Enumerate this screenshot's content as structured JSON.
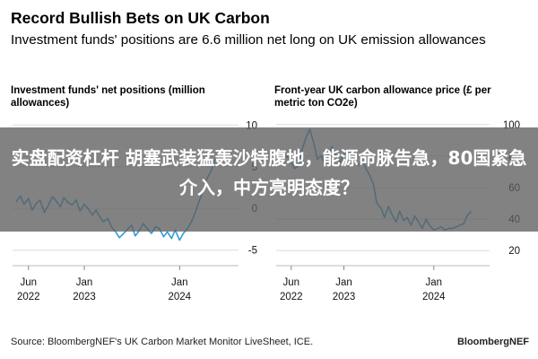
{
  "header": {
    "title": "Record Bullish Bets on UK Carbon",
    "subtitle": "Investment funds' positions are 6.6 million net long on UK emission allowances"
  },
  "overlay": {
    "banner_text": "实盘配资杠杆 胡塞武装猛轰沙特腹地，能源命脉告急，80国紧急介入，中方亮明态度？"
  },
  "footer": {
    "source": "Source: BloombergNEF's UK Carbon Market Monitor LiveSheet, ICE.",
    "brand": "BloombergNEF"
  },
  "chart_data": [
    {
      "type": "line",
      "title": "Investment funds' net positions (million allowances)",
      "xlabel": "",
      "ylabel": "",
      "color": "#2F9BD6",
      "x_ticks": [
        {
          "x": "2022-06-01",
          "line1": "Jun",
          "line2": "2022"
        },
        {
          "x": "2023-01-01",
          "line1": "Jan",
          "line2": "2023"
        },
        {
          "x": "2024-01-01",
          "line1": "Jan",
          "line2": "2024"
        }
      ],
      "y_ticks": [
        10,
        5,
        0,
        -5
      ],
      "xlim": [
        "2022-04-01",
        "2024-07-31"
      ],
      "ylim": [
        -6,
        11
      ],
      "series": [
        {
          "name": "",
          "x": [
            "2022-04-15",
            "2022-05-01",
            "2022-05-15",
            "2022-06-01",
            "2022-06-15",
            "2022-07-01",
            "2022-07-15",
            "2022-08-01",
            "2022-08-15",
            "2022-09-01",
            "2022-09-15",
            "2022-10-01",
            "2022-10-15",
            "2022-11-01",
            "2022-11-15",
            "2022-12-01",
            "2022-12-15",
            "2023-01-01",
            "2023-01-15",
            "2023-02-01",
            "2023-02-15",
            "2023-03-01",
            "2023-03-15",
            "2023-04-01",
            "2023-04-15",
            "2023-05-01",
            "2023-05-15",
            "2023-06-01",
            "2023-06-15",
            "2023-07-01",
            "2023-07-15",
            "2023-08-01",
            "2023-08-15",
            "2023-09-01",
            "2023-09-15",
            "2023-10-01",
            "2023-10-15",
            "2023-11-01",
            "2023-11-15",
            "2023-12-01",
            "2023-12-15",
            "2024-01-01",
            "2024-01-15",
            "2024-02-01",
            "2024-02-15",
            "2024-03-01",
            "2024-03-15",
            "2024-04-01",
            "2024-04-15",
            "2024-05-01",
            "2024-05-15",
            "2024-06-01"
          ],
          "values": [
            0.8,
            1.5,
            0.5,
            1.2,
            -0.2,
            0.6,
            1.0,
            -0.5,
            0.3,
            1.4,
            0.9,
            0.2,
            1.3,
            0.7,
            0.4,
            1.0,
            -0.3,
            0.5,
            0.0,
            -0.8,
            -0.2,
            -1.0,
            -1.6,
            -1.2,
            -2.2,
            -2.8,
            -3.5,
            -3.0,
            -2.5,
            -2.0,
            -3.3,
            -2.6,
            -1.8,
            -2.5,
            -3.0,
            -2.2,
            -2.4,
            -3.4,
            -2.8,
            -3.6,
            -2.6,
            -3.8,
            -3.0,
            -2.4,
            -1.6,
            -0.5,
            0.8,
            2.2,
            3.6,
            4.5,
            5.8,
            6.6
          ]
        }
      ]
    },
    {
      "type": "line",
      "title": "Front-year UK carbon allowance price (£ per metric ton CO2e)",
      "xlabel": "",
      "ylabel": "",
      "color": "#2F9BD6",
      "x_ticks": [
        {
          "x": "2022-06-01",
          "line1": "Jun",
          "line2": "2022"
        },
        {
          "x": "2023-01-01",
          "line1": "Jan",
          "line2": "2023"
        },
        {
          "x": "2024-01-01",
          "line1": "Jan",
          "line2": "2024"
        }
      ],
      "y_ticks": [
        100,
        80,
        60,
        40,
        20
      ],
      "xlim": [
        "2022-04-01",
        "2024-07-31"
      ],
      "ylim": [
        15,
        105
      ],
      "series": [
        {
          "name": "",
          "x": [
            "2022-04-15",
            "2022-05-01",
            "2022-05-15",
            "2022-06-01",
            "2022-06-15",
            "2022-07-01",
            "2022-07-15",
            "2022-08-01",
            "2022-08-15",
            "2022-09-01",
            "2022-09-15",
            "2022-10-01",
            "2022-10-15",
            "2022-11-01",
            "2022-11-15",
            "2022-12-01",
            "2022-12-15",
            "2023-01-01",
            "2023-01-15",
            "2023-02-01",
            "2023-02-15",
            "2023-03-01",
            "2023-03-15",
            "2023-04-01",
            "2023-04-15",
            "2023-05-01",
            "2023-05-15",
            "2023-06-01",
            "2023-06-15",
            "2023-07-01",
            "2023-07-15",
            "2023-08-01",
            "2023-08-15",
            "2023-09-01",
            "2023-09-15",
            "2023-10-01",
            "2023-10-15",
            "2023-11-01",
            "2023-11-15",
            "2023-12-01",
            "2023-12-15",
            "2024-01-01",
            "2024-01-15",
            "2024-02-01",
            "2024-02-15",
            "2024-03-01",
            "2024-03-15",
            "2024-04-01",
            "2024-04-15",
            "2024-05-01",
            "2024-05-15",
            "2024-06-01"
          ],
          "values": [
            82,
            78,
            80,
            76,
            72,
            74,
            84,
            92,
            97,
            88,
            78,
            80,
            75,
            82,
            86,
            79,
            76,
            81,
            84,
            80,
            77,
            74,
            78,
            72,
            68,
            62,
            50,
            47,
            41,
            48,
            43,
            38,
            45,
            39,
            41,
            36,
            42,
            38,
            34,
            40,
            36,
            33,
            34,
            35,
            33,
            34,
            34,
            35,
            36,
            37,
            42,
            45
          ]
        }
      ]
    }
  ]
}
